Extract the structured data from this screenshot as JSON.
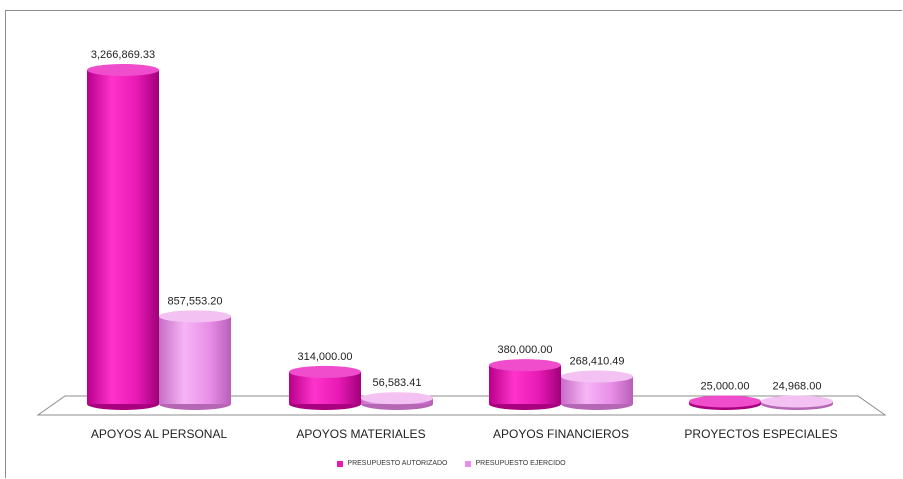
{
  "chart_data": {
    "type": "bar",
    "categories": [
      "APOYOS AL PERSONAL",
      "APOYOS MATERIALES",
      "APOYOS FINANCIEROS",
      "PROYECTOS ESPECIALES"
    ],
    "series": [
      {
        "name": "PRESUPUESTO AUTORIZADO",
        "values": [
          3266869.33,
          314000.0,
          380000.0,
          25000.0
        ],
        "labels": [
          "3,266,869.33",
          "314,000.00",
          "380,000.00",
          "25,000.00"
        ],
        "color": "#e619b4"
      },
      {
        "name": "PRESUPUESTO EJERCIDO",
        "values": [
          857553.2,
          56583.41,
          268410.49,
          24968.0
        ],
        "labels": [
          "857,553.20",
          "56,583.41",
          "268,410.49",
          "24,968.00"
        ],
        "color": "#e98ee8"
      }
    ],
    "style": "3d-cylinder",
    "grid": false,
    "legend_position": "bottom"
  }
}
